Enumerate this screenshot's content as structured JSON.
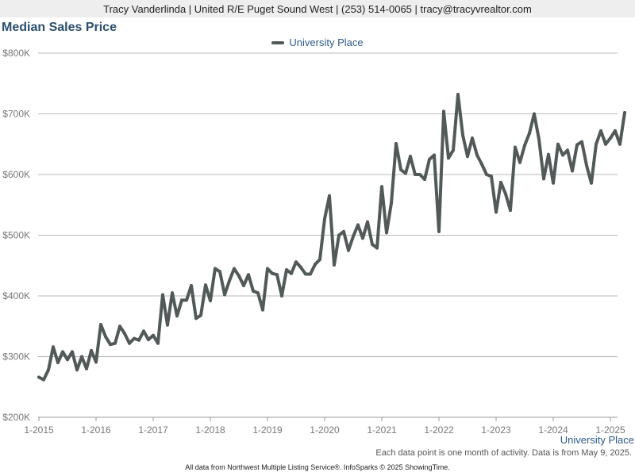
{
  "header": {
    "contact_line": "Tracy Vanderlinda | United R/E Puget Sound West | (253) 514-0065 | tracy@tracyvrealtor.com"
  },
  "colors": {
    "line": "#525a59",
    "title": "#2b4f6e",
    "legend_text": "#2e5a8a",
    "grid": "#b8b8b8",
    "axis_text": "#777777"
  },
  "chart_data": {
    "type": "line",
    "title": "Median Sales Price",
    "xlabel": "",
    "ylabel": "",
    "ylim": [
      200000,
      800000
    ],
    "yticks": [
      200000,
      300000,
      400000,
      500000,
      600000,
      700000,
      800000
    ],
    "ytick_labels": [
      "$200K",
      "$300K",
      "$400K",
      "$500K",
      "$600K",
      "$700K",
      "$800K"
    ],
    "xticks": [
      "2015-01",
      "2016-01",
      "2017-01",
      "2018-01",
      "2019-01",
      "2020-01",
      "2021-01",
      "2022-01",
      "2023-01",
      "2024-01",
      "2025-01"
    ],
    "xtick_labels": [
      "1-2015",
      "1-2016",
      "1-2017",
      "1-2018",
      "1-2019",
      "1-2020",
      "1-2021",
      "1-2022",
      "1-2023",
      "1-2024",
      "1-2025"
    ],
    "grid": true,
    "legend": "top-center",
    "series": [
      {
        "name": "University Place",
        "x": [
          "2015-01",
          "2015-02",
          "2015-03",
          "2015-04",
          "2015-05",
          "2015-06",
          "2015-07",
          "2015-08",
          "2015-09",
          "2015-10",
          "2015-11",
          "2015-12",
          "2016-01",
          "2016-02",
          "2016-03",
          "2016-04",
          "2016-05",
          "2016-06",
          "2016-07",
          "2016-08",
          "2016-09",
          "2016-10",
          "2016-11",
          "2016-12",
          "2017-01",
          "2017-02",
          "2017-03",
          "2017-04",
          "2017-05",
          "2017-06",
          "2017-07",
          "2017-08",
          "2017-09",
          "2017-10",
          "2017-11",
          "2017-12",
          "2018-01",
          "2018-02",
          "2018-03",
          "2018-04",
          "2018-05",
          "2018-06",
          "2018-07",
          "2018-08",
          "2018-09",
          "2018-10",
          "2018-11",
          "2018-12",
          "2019-01",
          "2019-02",
          "2019-03",
          "2019-04",
          "2019-05",
          "2019-06",
          "2019-07",
          "2019-08",
          "2019-09",
          "2019-10",
          "2019-11",
          "2019-12",
          "2020-01",
          "2020-02",
          "2020-03",
          "2020-04",
          "2020-05",
          "2020-06",
          "2020-07",
          "2020-08",
          "2020-09",
          "2020-10",
          "2020-11",
          "2020-12",
          "2021-01",
          "2021-02",
          "2021-03",
          "2021-04",
          "2021-05",
          "2021-06",
          "2021-07",
          "2021-08",
          "2021-09",
          "2021-10",
          "2021-11",
          "2021-12",
          "2022-01",
          "2022-02",
          "2022-03",
          "2022-04",
          "2022-05",
          "2022-06",
          "2022-07",
          "2022-08",
          "2022-09",
          "2022-10",
          "2022-11",
          "2022-12",
          "2023-01",
          "2023-02",
          "2023-03",
          "2023-04",
          "2023-05",
          "2023-06",
          "2023-07",
          "2023-08",
          "2023-09",
          "2023-10",
          "2023-11",
          "2023-12",
          "2024-01",
          "2024-02",
          "2024-03",
          "2024-04",
          "2024-05",
          "2024-06",
          "2024-07",
          "2024-08",
          "2024-09",
          "2024-10",
          "2024-11",
          "2024-12",
          "2025-01",
          "2025-02",
          "2025-03",
          "2025-04"
        ],
        "values": [
          266000,
          262000,
          278000,
          316000,
          290000,
          308000,
          295000,
          308000,
          278000,
          300000,
          280000,
          310000,
          291000,
          353000,
          333000,
          320000,
          322000,
          350000,
          338000,
          322000,
          330000,
          327000,
          342000,
          328000,
          335000,
          322000,
          402000,
          352000,
          405000,
          367000,
          393000,
          393000,
          417000,
          363000,
          368000,
          418000,
          392000,
          445000,
          440000,
          402000,
          425000,
          445000,
          433000,
          417000,
          435000,
          408000,
          405000,
          377000,
          445000,
          437000,
          435000,
          400000,
          443000,
          437000,
          456000,
          447000,
          436000,
          436000,
          452000,
          460000,
          527000,
          565000,
          451000,
          500000,
          506000,
          475000,
          498000,
          517000,
          495000,
          522000,
          485000,
          479000,
          580000,
          504000,
          553000,
          651000,
          608000,
          602000,
          630000,
          600000,
          600000,
          592000,
          625000,
          632000,
          506000,
          704000,
          627000,
          640000,
          732000,
          665000,
          630000,
          660000,
          632000,
          617000,
          600000,
          597000,
          538000,
          587000,
          568000,
          541000,
          645000,
          620000,
          648000,
          668000,
          700000,
          658000,
          593000,
          633000,
          586000,
          650000,
          632000,
          640000,
          606000,
          649000,
          654000,
          615000,
          586000,
          650000,
          672000,
          650000,
          660000,
          672000,
          650000,
          702000
        ]
      }
    ],
    "footnote": "Each data point is one month of activity. Data is from May 9, 2025.",
    "source": "All data from Northwest Multiple Listing Service®. InfoSparks © 2025 ShowingTime."
  }
}
